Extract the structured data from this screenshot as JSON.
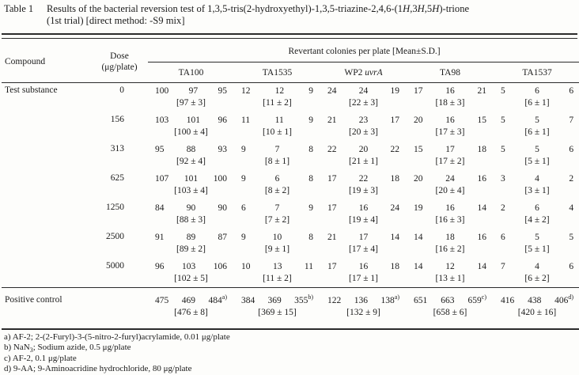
{
  "title": {
    "label": "Table 1",
    "line1": {
      "s1": "Results of the bacterial reversion test of 1,3,5-tris(2-hydroxyethyl)-1,3,5-triazine-2,4,6-(1",
      "h1": "H",
      "s2": ",3",
      "h2": "H",
      "s3": ",5",
      "h3": "H",
      "s4": ")-trione"
    },
    "line2": "(1st trial) [direct method: -S9 mix]"
  },
  "table": {
    "header": {
      "compound": "Compound",
      "dose_line1": "Dose",
      "dose_line2": "(μg/plate)",
      "spanner": "Revertant colonies per plate [Mean±S.D.]",
      "strains": [
        {
          "name": "TA100",
          "italic": ""
        },
        {
          "name": "TA1535",
          "italic": ""
        },
        {
          "name": "WP2 ",
          "italic": "uvrA"
        },
        {
          "name": "TA98",
          "italic": ""
        },
        {
          "name": "TA1537",
          "italic": ""
        }
      ]
    },
    "rows": [
      {
        "compound": "Test substance",
        "dose": "0",
        "cells": [
          {
            "v": [
              "100",
              "97",
              "95"
            ],
            "m": "[97 ± 3]"
          },
          {
            "v": [
              "12",
              "12",
              "9"
            ],
            "m": "[11 ± 2]"
          },
          {
            "v": [
              "24",
              "24",
              "19"
            ],
            "m": "[22 ± 3]"
          },
          {
            "v": [
              "17",
              "16",
              "21"
            ],
            "m": "[18 ± 3]"
          },
          {
            "v": [
              "5",
              "6",
              "6"
            ],
            "m": "[6 ± 1]"
          }
        ]
      },
      {
        "compound": "",
        "dose": "156",
        "cells": [
          {
            "v": [
              "103",
              "101",
              "96"
            ],
            "m": "[100 ± 4]"
          },
          {
            "v": [
              "11",
              "11",
              "9"
            ],
            "m": "[10 ± 1]"
          },
          {
            "v": [
              "21",
              "23",
              "17"
            ],
            "m": "[20 ± 3]"
          },
          {
            "v": [
              "20",
              "16",
              "15"
            ],
            "m": "[17 ± 3]"
          },
          {
            "v": [
              "5",
              "5",
              "7"
            ],
            "m": "[6 ± 1]"
          }
        ]
      },
      {
        "compound": "",
        "dose": "313",
        "cells": [
          {
            "v": [
              "95",
              "88",
              "93"
            ],
            "m": "[92 ± 4]"
          },
          {
            "v": [
              "9",
              "7",
              "8"
            ],
            "m": "[8 ± 1]"
          },
          {
            "v": [
              "22",
              "20",
              "22"
            ],
            "m": "[21 ± 1]"
          },
          {
            "v": [
              "15",
              "17",
              "18"
            ],
            "m": "[17 ± 2]"
          },
          {
            "v": [
              "5",
              "5",
              "6"
            ],
            "m": "[5 ± 1]"
          }
        ]
      },
      {
        "compound": "",
        "dose": "625",
        "cells": [
          {
            "v": [
              "107",
              "101",
              "100"
            ],
            "m": "[103 ± 4]"
          },
          {
            "v": [
              "9",
              "6",
              "8"
            ],
            "m": "[8 ± 2]"
          },
          {
            "v": [
              "17",
              "22",
              "18"
            ],
            "m": "[19 ± 3]"
          },
          {
            "v": [
              "20",
              "24",
              "16"
            ],
            "m": "[20 ± 4]"
          },
          {
            "v": [
              "3",
              "4",
              "2"
            ],
            "m": "[3 ± 1]"
          }
        ]
      },
      {
        "compound": "",
        "dose": "1250",
        "cells": [
          {
            "v": [
              "84",
              "90",
              "90"
            ],
            "m": "[88 ± 3]"
          },
          {
            "v": [
              "6",
              "7",
              "9"
            ],
            "m": "[7 ± 2]"
          },
          {
            "v": [
              "17",
              "16",
              "24"
            ],
            "m": "[19 ± 4]"
          },
          {
            "v": [
              "19",
              "16",
              "14"
            ],
            "m": "[16 ± 3]"
          },
          {
            "v": [
              "2",
              "6",
              "4"
            ],
            "m": "[4 ± 2]"
          }
        ]
      },
      {
        "compound": "",
        "dose": "2500",
        "cells": [
          {
            "v": [
              "91",
              "89",
              "87"
            ],
            "m": "[89 ± 2]"
          },
          {
            "v": [
              "9",
              "10",
              "8"
            ],
            "m": "[9 ± 1]"
          },
          {
            "v": [
              "21",
              "17",
              "14"
            ],
            "m": "[17 ± 4]"
          },
          {
            "v": [
              "14",
              "18",
              "16"
            ],
            "m": "[16 ± 2]"
          },
          {
            "v": [
              "6",
              "5",
              "5"
            ],
            "m": "[5 ± 1]"
          }
        ]
      },
      {
        "compound": "",
        "dose": "5000",
        "cells": [
          {
            "v": [
              "96",
              "103",
              "106"
            ],
            "m": "[102 ± 5]"
          },
          {
            "v": [
              "10",
              "13",
              "11"
            ],
            "m": "[11 ± 2]"
          },
          {
            "v": [
              "17",
              "16",
              "18"
            ],
            "m": "[17 ± 1]"
          },
          {
            "v": [
              "14",
              "12",
              "14"
            ],
            "m": "[13 ± 1]"
          },
          {
            "v": [
              "7",
              "4",
              "6"
            ],
            "m": "[6 ± 2]"
          }
        ]
      }
    ],
    "positive_control": {
      "compound": "Positive control",
      "dose": "",
      "cells": [
        {
          "v": [
            "475",
            "469",
            "484"
          ],
          "sup": "a)",
          "m": "[476 ± 8]"
        },
        {
          "v": [
            "384",
            "369",
            "355"
          ],
          "sup": "b)",
          "m": "[369 ± 15]"
        },
        {
          "v": [
            "122",
            "136",
            "138"
          ],
          "sup": "a)",
          "m": "[132 ± 9]"
        },
        {
          "v": [
            "651",
            "663",
            "659"
          ],
          "sup": "c)",
          "m": "[658 ± 6]"
        },
        {
          "v": [
            "416",
            "438",
            "406"
          ],
          "sup": "d)",
          "m": "[420 ± 16]"
        }
      ]
    }
  },
  "footnotes": {
    "a": {
      "pre": "a) AF-2; 2-(2-Furyl)-3-(5-nitro-2-furyl)acrylamide, 0.01 μg/plate"
    },
    "b": {
      "pre": "b) NaN",
      "sub": "3",
      "post": "; Sodium azide, 0.5 μg/plate"
    },
    "c": {
      "pre": "c) AF-2, 0.1 μg/plate"
    },
    "d": {
      "pre": "d) 9-AA; 9-Aminoacridine hydrochloride, 80 μg/plate"
    }
  }
}
